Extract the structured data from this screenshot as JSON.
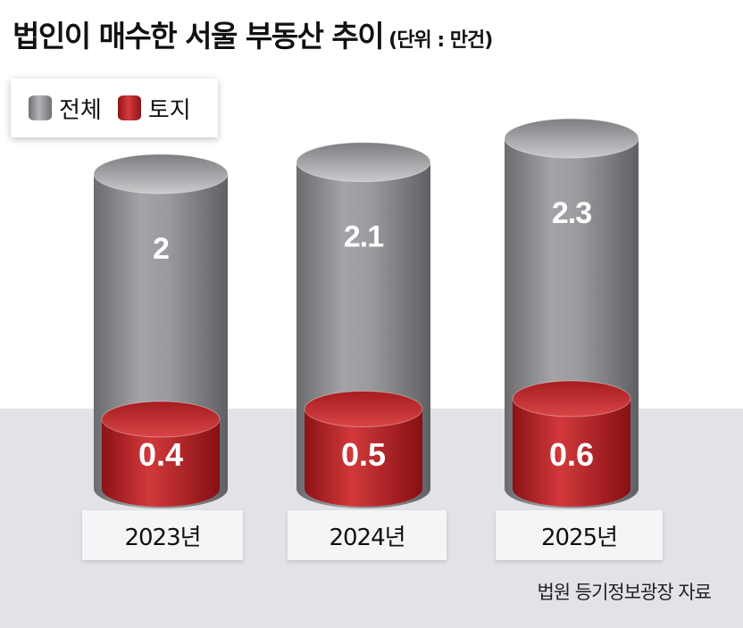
{
  "chart_data": {
    "type": "bar",
    "style": "3d-cylinder",
    "title": "법인이 매수한 서울 부동산 추이",
    "unit_label": "(단위 : 만건)",
    "categories": [
      "2023년",
      "2024년",
      "2025년"
    ],
    "series": [
      {
        "name": "전체",
        "values": [
          2,
          2.1,
          2.3
        ],
        "labels": [
          "2",
          "2.1",
          "2.3"
        ],
        "color": "#8a8b8e"
      },
      {
        "name": "토지",
        "values": [
          0.4,
          0.5,
          0.6
        ],
        "labels": [
          "0.4",
          "0.5",
          "0.6"
        ],
        "color": "#c42a2d"
      }
    ],
    "legend": "top-left",
    "source": "법원 등기정보광장 자료"
  }
}
